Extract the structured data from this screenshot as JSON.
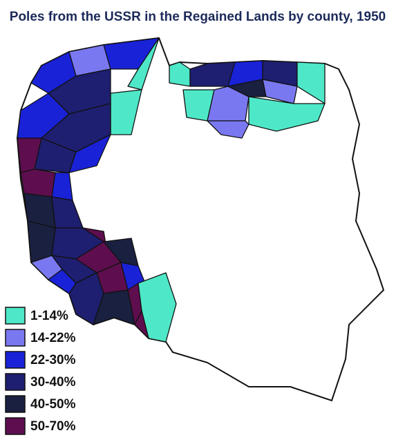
{
  "title": "Poles from the USSR in the Regained Lands by county, 1950",
  "legend": [
    {
      "label": "1-14%",
      "color": "#4ee8c8"
    },
    {
      "label": "14-22%",
      "color": "#7a78f0"
    },
    {
      "label": "22-30%",
      "color": "#1a22d8"
    },
    {
      "label": "30-40%",
      "color": "#1e1f70"
    },
    {
      "label": "40-50%",
      "color": "#1a2040"
    },
    {
      "label": "50-70%",
      "color": "#5e0e4e"
    }
  ]
}
